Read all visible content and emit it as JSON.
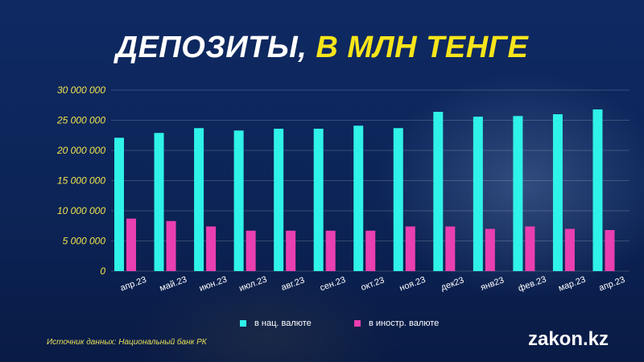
{
  "title": {
    "part1": "ДЕПОЗИТЫ, ",
    "part2": "В МЛН ТЕНГЕ"
  },
  "source": "Источник данных: Национальный банк РК",
  "brand": "zakon.kz",
  "colors": {
    "national": "#2ff2e8",
    "foreign": "#e93fb0",
    "ytick": "#f2e64a",
    "background": "#0d2558"
  },
  "chart_data": {
    "type": "bar",
    "title": "ДЕПОЗИТЫ, В МЛН ТЕНГЕ",
    "xlabel": "",
    "ylabel": "",
    "ylim": [
      0,
      30000000
    ],
    "yticks": [
      0,
      5000000,
      10000000,
      15000000,
      20000000,
      25000000,
      30000000
    ],
    "ytick_labels": [
      "0",
      "5 000 000",
      "10 000 000",
      "15 000 000",
      "20 000 000",
      "25 000 000",
      "30 000 000"
    ],
    "grid": true,
    "legend_position": "bottom-center",
    "categories": [
      "апр.23",
      "май.23",
      "июн.23",
      "июл.23",
      "авг.23",
      "сен.23",
      "окт.23",
      "ноя.23",
      "дек23",
      "янв23",
      "фев.23",
      "мар.23",
      "апр.23"
    ],
    "series": [
      {
        "name": "в нац. валюте",
        "color": "#2ff2e8",
        "values": [
          22100000,
          22900000,
          23700000,
          23300000,
          23600000,
          23600000,
          24100000,
          23700000,
          26400000,
          25600000,
          25700000,
          26000000,
          26800000
        ]
      },
      {
        "name": "в иностр. валюте",
        "color": "#e93fb0",
        "values": [
          8700000,
          8300000,
          7400000,
          6700000,
          6700000,
          6700000,
          6700000,
          7400000,
          7400000,
          7000000,
          7400000,
          7000000,
          6800000
        ]
      }
    ]
  }
}
